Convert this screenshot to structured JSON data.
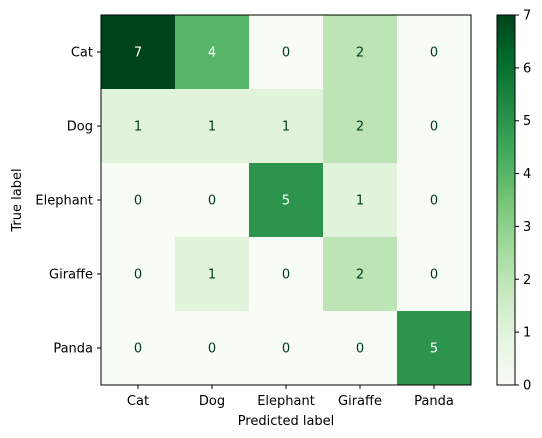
{
  "chart_data": {
    "type": "heatmap",
    "xlabel": "Predicted label",
    "ylabel": "True label",
    "x_categories": [
      "Cat",
      "Dog",
      "Elephant",
      "Giraffe",
      "Panda"
    ],
    "y_categories": [
      "Cat",
      "Dog",
      "Elephant",
      "Giraffe",
      "Panda"
    ],
    "values": [
      [
        7,
        4,
        0,
        2,
        0
      ],
      [
        1,
        1,
        1,
        2,
        0
      ],
      [
        0,
        0,
        5,
        1,
        0
      ],
      [
        0,
        1,
        0,
        2,
        0
      ],
      [
        0,
        0,
        0,
        0,
        5
      ]
    ],
    "colormap": "Greens",
    "vmin": 0,
    "vmax": 7,
    "colorbar_ticks": [
      0,
      1,
      2,
      3,
      4,
      5,
      6,
      7
    ],
    "grid": false
  }
}
